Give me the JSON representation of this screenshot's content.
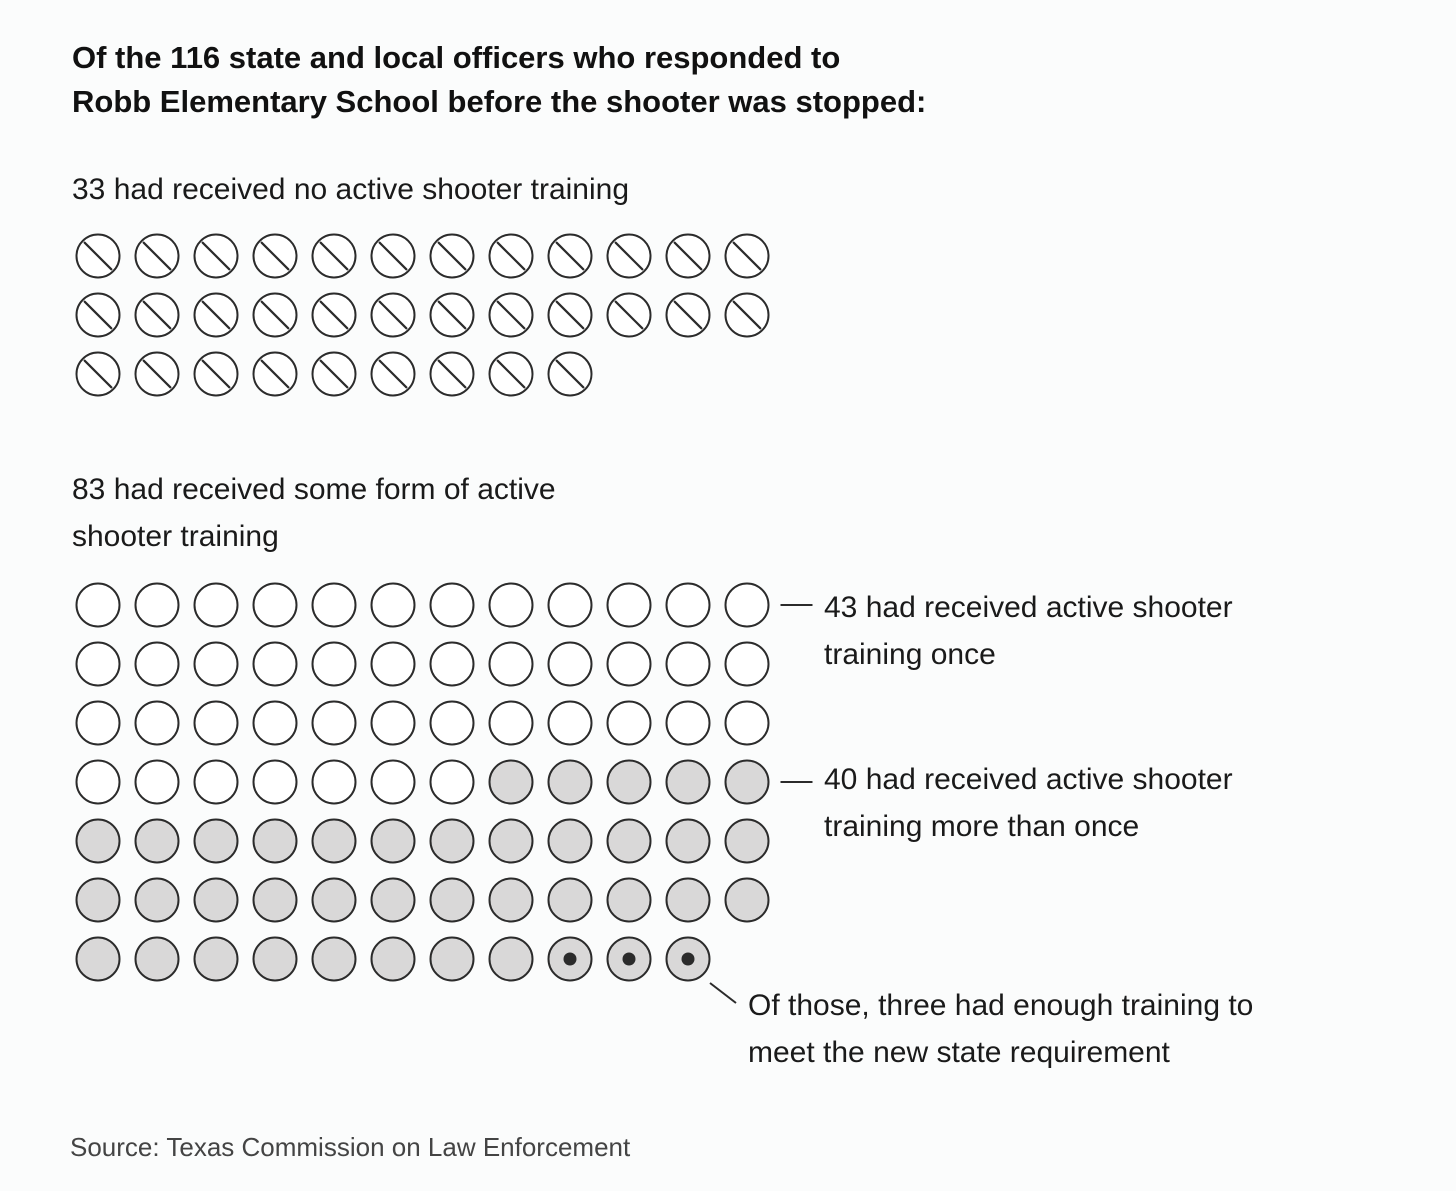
{
  "title_lines": [
    "Of the 116 state and local officers who responded to",
    "Robb Elementary School before the shooter was stopped:"
  ],
  "source": "Source: Texas Commission on Law Enforcement",
  "colors": {
    "stroke": "#2b2b2b",
    "empty_fill": "#ffffff",
    "gray_fill": "#d9d8d8",
    "dot": "#2b2b2b",
    "background": "#fbfcfc"
  },
  "chart_data": {
    "type": "waffle",
    "total": 116,
    "groups": [
      {
        "id": "no-training",
        "count": 33,
        "label_lines": [
          "33 had received no active shooter training"
        ],
        "symbol": "circle-slash"
      },
      {
        "id": "some-training",
        "count": 83,
        "label_lines": [
          "83 had received some form of active",
          "shooter training"
        ],
        "subgroups": [
          {
            "id": "once",
            "count": 43,
            "label_lines": [
              "43 had received active shooter",
              "training once"
            ],
            "symbol": "circle-empty"
          },
          {
            "id": "more-than-once",
            "count": 40,
            "label_lines": [
              "40 had received active shooter",
              "training more than once"
            ],
            "symbol": "circle-gray",
            "highlighted": {
              "count": 3,
              "label_lines": [
                "Of those, three had enough training to",
                "meet the new state requirement"
              ],
              "symbol": "circle-gray-dot"
            }
          }
        ]
      }
    ]
  }
}
